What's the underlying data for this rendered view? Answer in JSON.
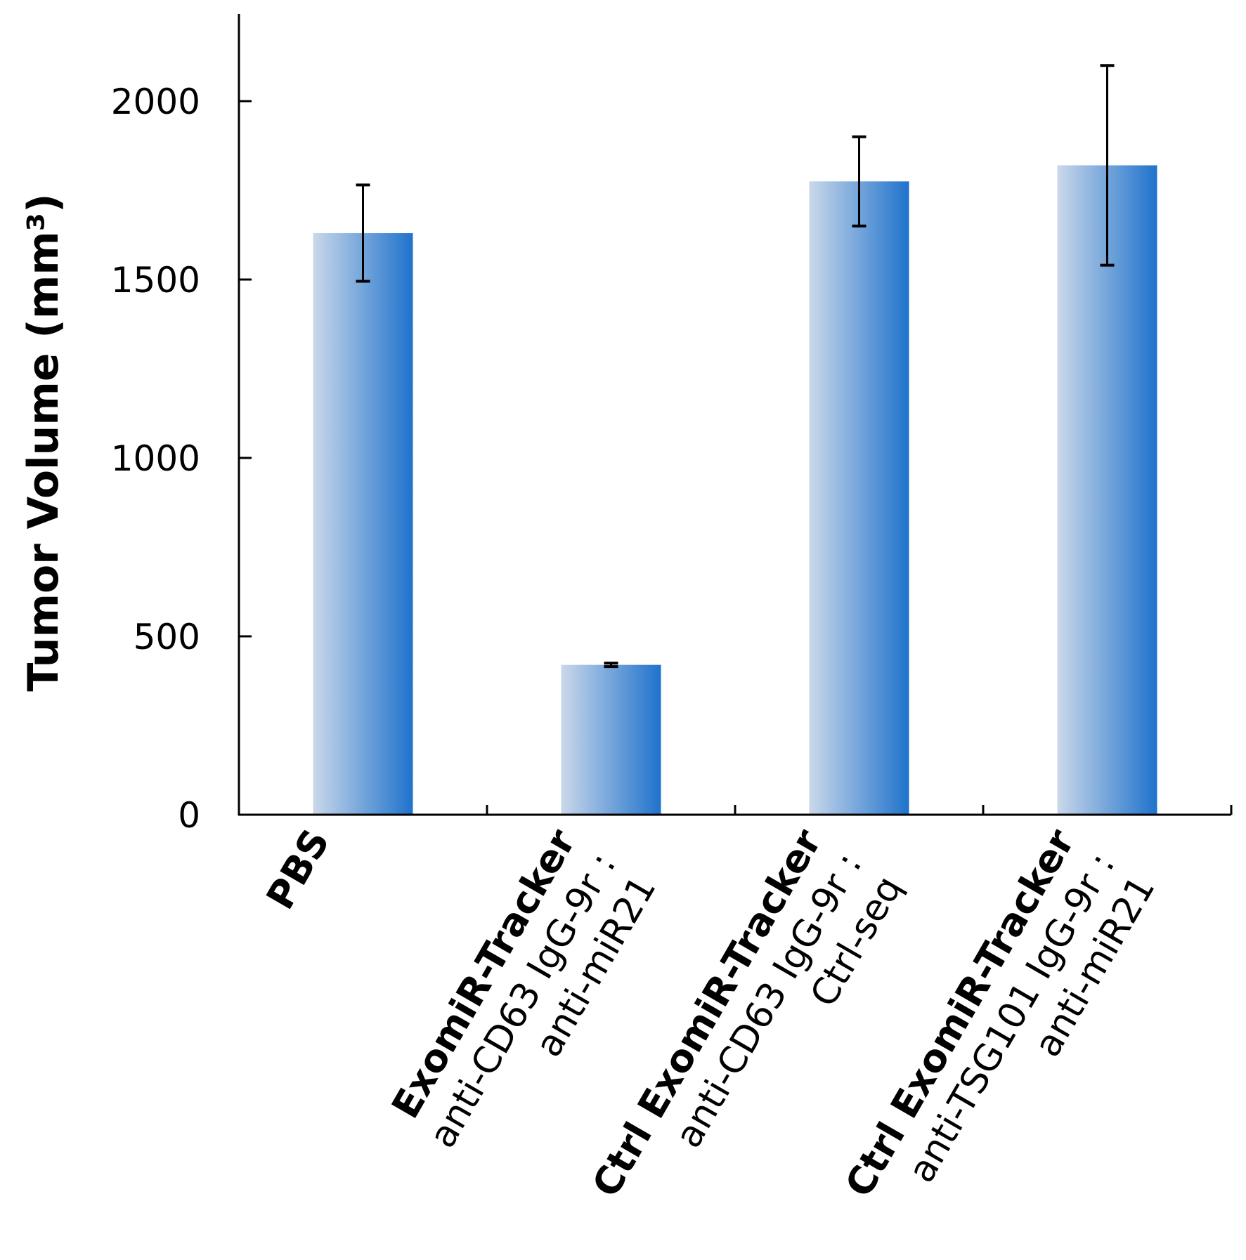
{
  "chart_data": {
    "type": "bar",
    "ylabel": "Tumor Volume (mm³)",
    "ylim": [
      0,
      2250
    ],
    "yticks": [
      0,
      500,
      1000,
      1500,
      2000
    ],
    "grid": false,
    "legend": "none",
    "categories": [
      [
        "PBS"
      ],
      [
        "ExomiR-Tracker",
        "anti-CD63 IgG-9r :",
        "anti-miR21"
      ],
      [
        "Ctrl ExomiR-Tracker",
        "anti-CD63 IgG-9r :",
        "Ctrl-seq"
      ],
      [
        "Ctrl ExomiR-Tracker",
        "anti-TSG101 IgG-9r :",
        "anti-miR21"
      ]
    ],
    "values": [
      1630,
      420,
      1775,
      1820
    ],
    "error": [
      135,
      5,
      125,
      280
    ],
    "colors": {
      "bar_light": "#cad8ea",
      "bar_dark": "#1f72cc",
      "axis": "#000000"
    }
  }
}
